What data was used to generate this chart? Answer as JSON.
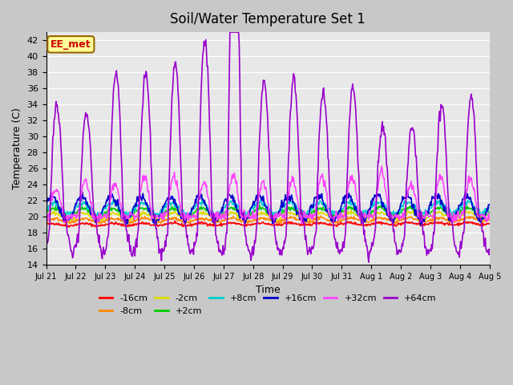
{
  "title": "Soil/Water Temperature Set 1",
  "xlabel": "Time",
  "ylabel": "Temperature (C)",
  "ylim": [
    14,
    43
  ],
  "yticks": [
    14,
    16,
    18,
    20,
    22,
    24,
    26,
    28,
    30,
    32,
    34,
    36,
    38,
    40,
    42
  ],
  "annotation_text": "EE_met",
  "annotation_color": "#cc0000",
  "annotation_bg": "#ffff99",
  "annotation_border": "#996600",
  "series": {
    "-16cm": {
      "color": "#ff0000",
      "lw": 1.2
    },
    "-8cm": {
      "color": "#ff8800",
      "lw": 1.2
    },
    "-2cm": {
      "color": "#dddd00",
      "lw": 1.2
    },
    "+2cm": {
      "color": "#00cc00",
      "lw": 1.2
    },
    "+8cm": {
      "color": "#00cccc",
      "lw": 1.2
    },
    "+16cm": {
      "color": "#0000cc",
      "lw": 1.2
    },
    "+32cm": {
      "color": "#ff44ff",
      "lw": 1.2
    },
    "+64cm": {
      "color": "#9900cc",
      "lw": 1.2
    }
  },
  "x_tick_labels": [
    "Jul 21",
    "Jul 22",
    "Jul 23",
    "Jul 24",
    "Jul 25",
    "Jul 26",
    "Jul 27",
    "Jul 28",
    "Jul 29",
    "Jul 30",
    "Jul 31",
    "Aug 1",
    "Aug 2",
    "Aug 3",
    "Aug 4",
    "Aug 5"
  ],
  "n_days": 15,
  "n_points_per_day": 48
}
